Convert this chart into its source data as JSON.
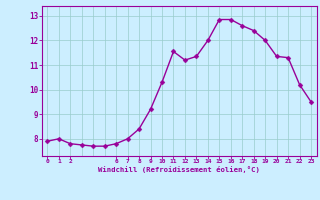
{
  "x": [
    0,
    1,
    2,
    3,
    4,
    5,
    6,
    7,
    8,
    9,
    10,
    11,
    12,
    13,
    14,
    15,
    16,
    17,
    18,
    19,
    20,
    21,
    22,
    23
  ],
  "y": [
    7.9,
    8.0,
    7.8,
    7.75,
    7.7,
    7.7,
    7.8,
    8.0,
    8.4,
    9.2,
    10.3,
    11.55,
    11.2,
    11.35,
    12.0,
    12.85,
    12.85,
    12.6,
    12.4,
    12.0,
    11.35,
    11.3,
    10.2,
    9.5
  ],
  "line_color": "#990099",
  "marker_color": "#990099",
  "bg_color": "#cceeff",
  "grid_color": "#99cccc",
  "xlabel": "Windchill (Refroidissement éolien,°C)",
  "xlabel_color": "#990099",
  "tick_color": "#990099",
  "xlim": [
    -0.5,
    23.5
  ],
  "ylim": [
    7.3,
    13.4
  ],
  "yticks": [
    8,
    9,
    10,
    11,
    12,
    13
  ],
  "xticks": [
    0,
    1,
    2,
    6,
    7,
    8,
    9,
    10,
    11,
    12,
    13,
    14,
    15,
    16,
    17,
    18,
    19,
    20,
    21,
    22,
    23
  ],
  "linewidth": 1.0,
  "markersize": 2.5
}
